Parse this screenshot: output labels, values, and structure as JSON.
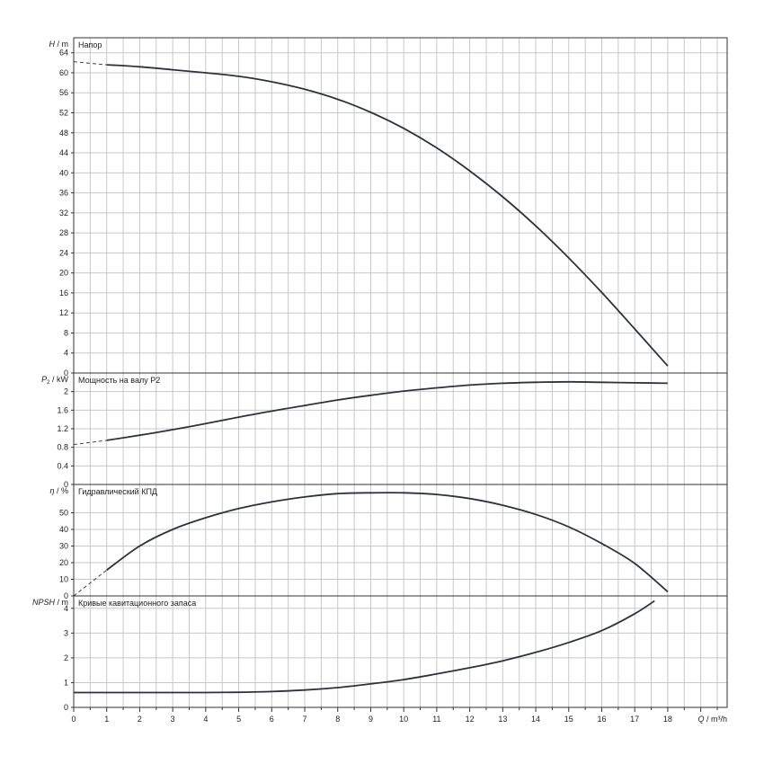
{
  "chart_data": {
    "type": "line",
    "x_axis": {
      "label_italic": "Q",
      "label_unit": " / m³/h",
      "range": [
        0,
        19.8
      ],
      "ticks": [
        0,
        1,
        2,
        3,
        4,
        5,
        6,
        7,
        8,
        9,
        10,
        11,
        12,
        13,
        14,
        15,
        16,
        17,
        18
      ],
      "minor_step": 0.5
    },
    "panels": [
      {
        "id": "head",
        "title": "Напор",
        "ylabel_italic": "H",
        "ylabel_unit": " / m",
        "ylim": [
          0,
          67
        ],
        "yticks": [
          0,
          4,
          8,
          12,
          16,
          20,
          24,
          28,
          32,
          36,
          40,
          44,
          48,
          52,
          56,
          60,
          64
        ],
        "ytick_labels": [
          "0",
          "4",
          "8",
          "12",
          "16",
          "20",
          "24",
          "28",
          "32",
          "36",
          "40",
          "44",
          "48",
          "52",
          "56",
          "60",
          "64"
        ],
        "dashed": {
          "x": [
            0,
            1
          ],
          "y": [
            62.2,
            61.6
          ]
        },
        "points": {
          "x": [
            1,
            2,
            3,
            4,
            5,
            6,
            7,
            8,
            9,
            10,
            11,
            12,
            13,
            14,
            15,
            16,
            17,
            18
          ],
          "y": [
            61.6,
            61.2,
            60.6,
            60.0,
            59.3,
            58.2,
            56.7,
            54.7,
            52.1,
            48.9,
            45.0,
            40.4,
            35.2,
            29.4,
            23.0,
            16.1,
            8.8,
            1.4
          ]
        }
      },
      {
        "id": "power",
        "title": "Мощность на валу P2",
        "ylabel_italic": "P",
        "ylabel_sub": "2",
        "ylabel_unit": " / kW",
        "ylim": [
          0,
          2.4
        ],
        "yticks": [
          0,
          0.4,
          0.8,
          1.2,
          1.6,
          2
        ],
        "ytick_labels": [
          "0",
          "0.4",
          "0.8",
          "1.2",
          "1.6",
          "2"
        ],
        "dashed": {
          "x": [
            0,
            1
          ],
          "y": [
            0.86,
            0.95
          ]
        },
        "points": {
          "x": [
            1,
            2,
            3,
            4,
            5,
            6,
            7,
            8,
            9,
            10,
            11,
            12,
            13,
            14,
            15,
            16,
            17,
            18
          ],
          "y": [
            0.95,
            1.06,
            1.18,
            1.31,
            1.45,
            1.58,
            1.7,
            1.82,
            1.92,
            2.01,
            2.08,
            2.14,
            2.18,
            2.2,
            2.21,
            2.2,
            2.19,
            2.18
          ]
        }
      },
      {
        "id": "efficiency",
        "title": "Гидравлический КПД",
        "ylabel_italic": "η",
        "ylabel_unit": " / %",
        "ylim": [
          0,
          67
        ],
        "yticks": [
          0,
          10,
          20,
          30,
          40,
          50
        ],
        "ytick_labels": [
          "0",
          "10",
          "20",
          "30",
          "40",
          "50"
        ],
        "dashed": {
          "x": [
            0,
            1
          ],
          "y": [
            0,
            15.5
          ]
        },
        "points": {
          "x": [
            1,
            2,
            3,
            4,
            5,
            6,
            7,
            8,
            9,
            10,
            11,
            12,
            13,
            14,
            15,
            16,
            17,
            18
          ],
          "y": [
            15.5,
            30.0,
            40.0,
            47.0,
            52.5,
            56.5,
            59.5,
            61.5,
            62.0,
            62.0,
            61.0,
            58.5,
            54.5,
            49.0,
            41.5,
            31.5,
            19.5,
            2.5
          ]
        }
      },
      {
        "id": "npsh",
        "title": "Кривые кавитационного запаса",
        "ylabel_italic": "NPSH",
        "ylabel_unit": " / m",
        "ylim": [
          0,
          4.5
        ],
        "yticks": [
          0,
          1,
          2,
          3,
          4
        ],
        "ytick_labels": [
          "0",
          "1",
          "2",
          "3",
          "4"
        ],
        "dashed": null,
        "points": {
          "x": [
            0,
            1,
            2,
            3,
            4,
            5,
            6,
            7,
            8,
            9,
            10,
            11,
            12,
            13,
            14,
            15,
            16,
            17,
            17.6
          ],
          "y": [
            0.6,
            0.6,
            0.6,
            0.6,
            0.6,
            0.61,
            0.64,
            0.7,
            0.8,
            0.95,
            1.12,
            1.35,
            1.6,
            1.88,
            2.22,
            2.62,
            3.1,
            3.78,
            4.3
          ]
        }
      }
    ]
  }
}
